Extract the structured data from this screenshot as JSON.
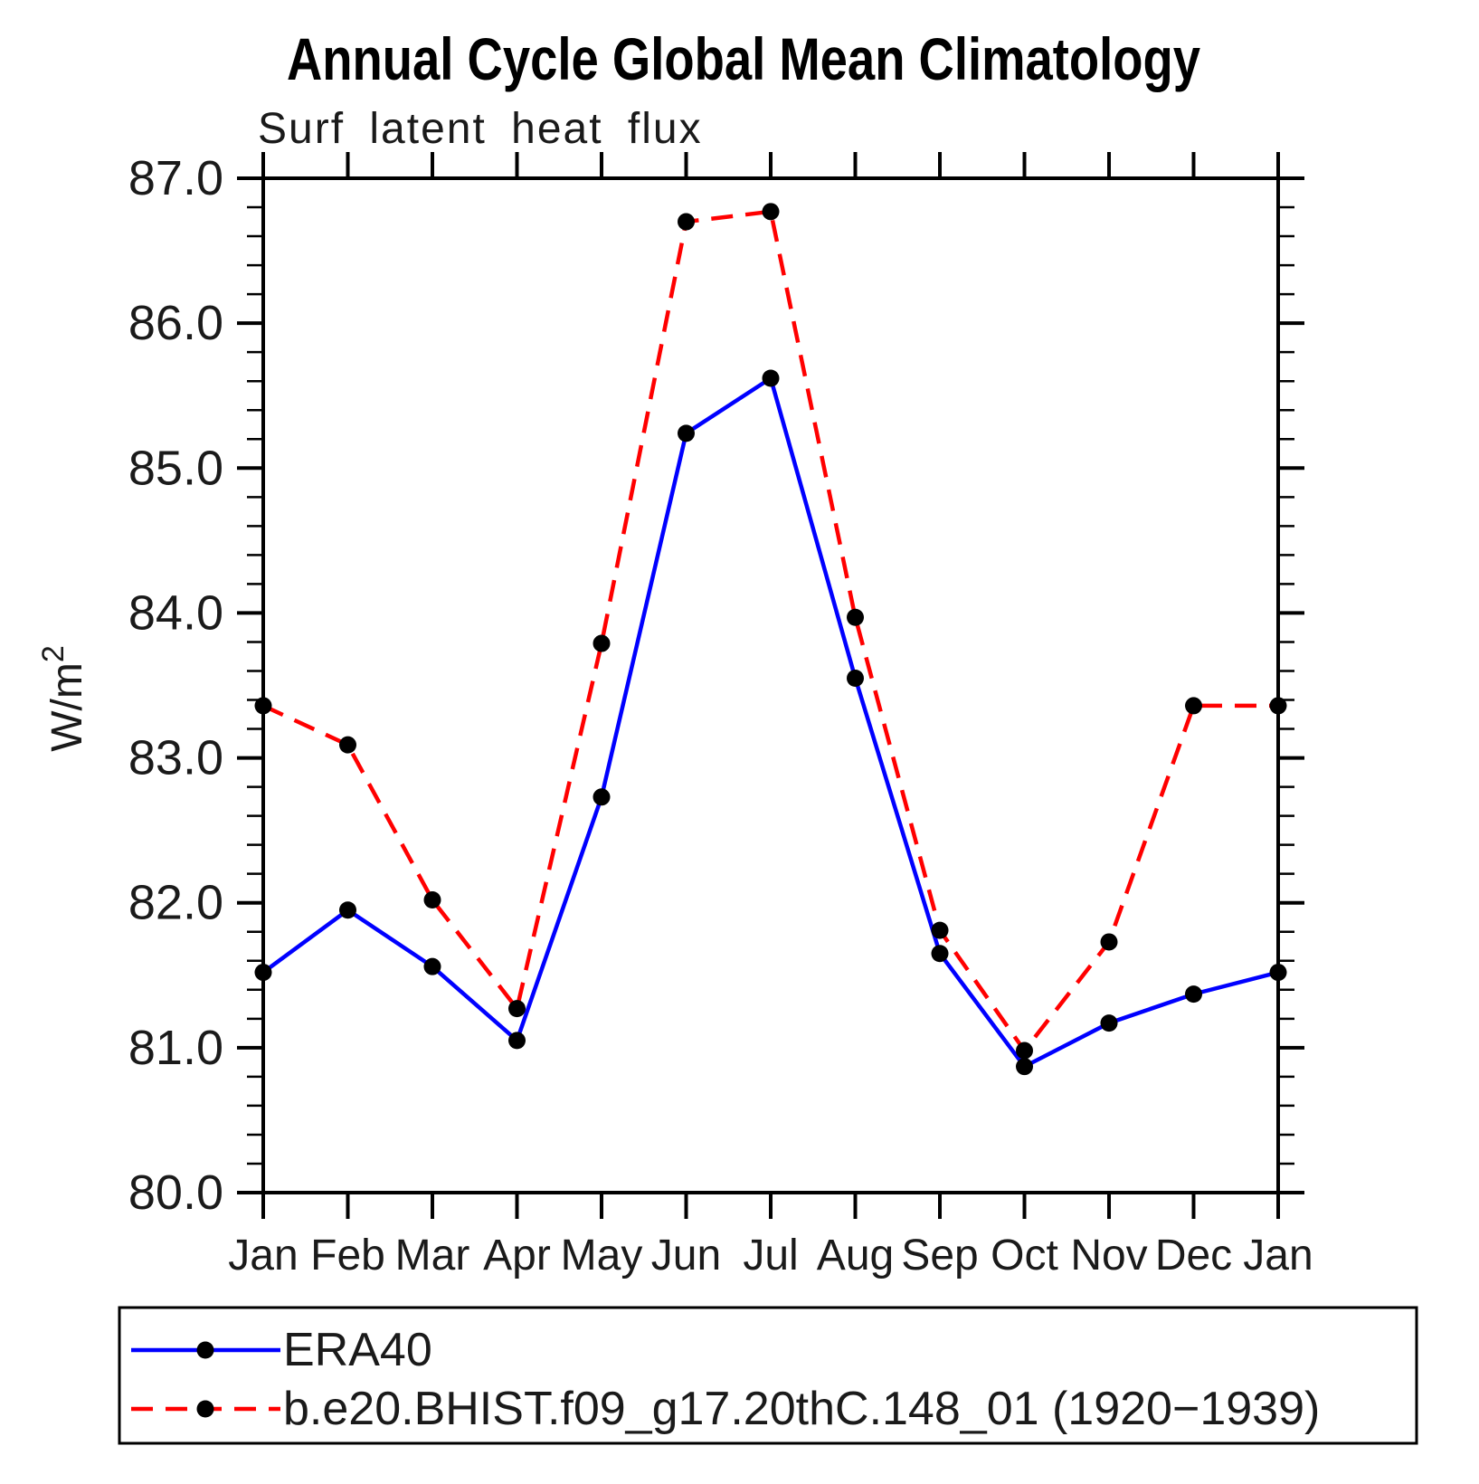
{
  "title": "Annual Cycle Global Mean Climatology",
  "subtitle": "Surf latent heat flux",
  "y_axis": {
    "label_base": "W/m",
    "label_sup": "2",
    "min": 80.0,
    "max": 87.0,
    "major_step": 1.0,
    "minor_step": 0.2,
    "tick_labels": [
      "80.0",
      "81.0",
      "82.0",
      "83.0",
      "84.0",
      "85.0",
      "86.0",
      "87.0"
    ]
  },
  "x_axis": {
    "labels": [
      "Jan",
      "Feb",
      "Mar",
      "Apr",
      "May",
      "Jun",
      "Jul",
      "Aug",
      "Sep",
      "Oct",
      "Nov",
      "Dec",
      "Jan"
    ]
  },
  "legend": [
    {
      "label": "ERA40",
      "color": "#0000ff",
      "style": "solid"
    },
    {
      "label": "b.e20.BHIST.f09_g17.20thC.148_01 (1920−1939)",
      "color": "#ff0000",
      "style": "dashed"
    }
  ],
  "marker_color": "#000000",
  "chart_data": {
    "type": "line",
    "title": "Annual Cycle Global Mean Climatology",
    "subtitle": "Surf latent heat flux",
    "ylabel": "W/m²",
    "ylim": [
      80.0,
      87.0
    ],
    "y_major_step": 1.0,
    "y_minor_step": 0.2,
    "grid": false,
    "legend_position": "bottom",
    "x": [
      "Jan",
      "Feb",
      "Mar",
      "Apr",
      "May",
      "Jun",
      "Jul",
      "Aug",
      "Sep",
      "Oct",
      "Nov",
      "Dec",
      "Jan"
    ],
    "series": [
      {
        "name": "ERA40",
        "color": "#0000ff",
        "line_style": "solid",
        "marker": "circle",
        "marker_color": "#000000",
        "values": [
          81.52,
          81.95,
          81.56,
          81.05,
          82.73,
          85.24,
          85.62,
          83.55,
          81.65,
          80.87,
          81.17,
          81.37,
          81.52
        ]
      },
      {
        "name": "b.e20.BHIST.f09_g17.20thC.148_01 (1920−1939)",
        "color": "#ff0000",
        "line_style": "dashed",
        "marker": "circle",
        "marker_color": "#000000",
        "values": [
          83.36,
          83.09,
          82.02,
          81.27,
          83.79,
          86.7,
          86.77,
          83.97,
          81.81,
          80.98,
          81.73,
          83.36,
          83.36
        ]
      }
    ]
  }
}
